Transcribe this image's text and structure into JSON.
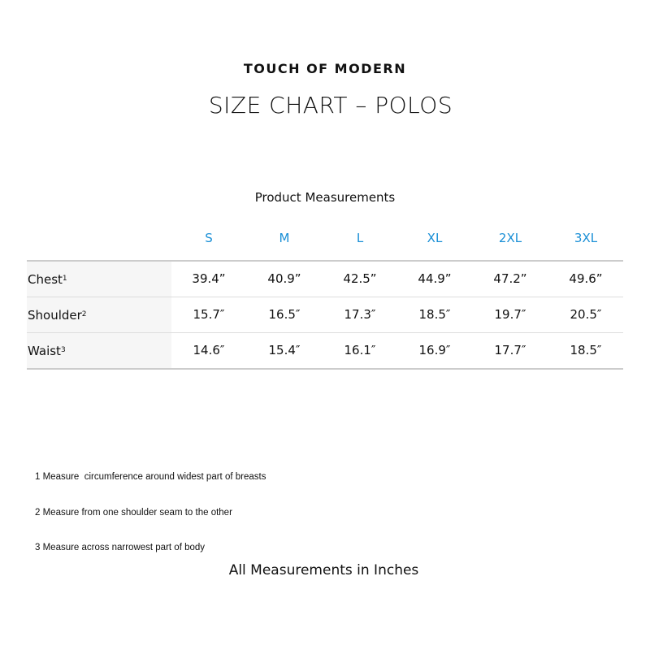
{
  "brand": "TOUCH OF MODERN",
  "title": "SIZE CHART – POLOS",
  "subtitle": "Product Measurements",
  "header_color": "#1a8fd6",
  "sizes": [
    "S",
    "M",
    "L",
    "XL",
    "2XL",
    "3XL"
  ],
  "rows": [
    {
      "label": "Chest",
      "sup": "1",
      "values": [
        "39.4”",
        "40.9”",
        "42.5”",
        "44.9”",
        "47.2”",
        "49.6”"
      ]
    },
    {
      "label": "Shoulder",
      "sup": "2",
      "values": [
        "15.7″",
        "16.5″",
        "17.3″",
        "18.5″",
        "19.7″",
        "20.5″"
      ]
    },
    {
      "label": "Waist",
      "sup": "3",
      "values": [
        "14.6″",
        "15.4″",
        "16.1″",
        "16.9″",
        "17.7″",
        "18.5″"
      ]
    }
  ],
  "notes": [
    "1 Measure  circumference around widest part of breasts",
    "2 Measure from one shoulder seam to the other",
    "3 Measure across narrowest part of body"
  ],
  "footer": "All Measurements in Inches"
}
